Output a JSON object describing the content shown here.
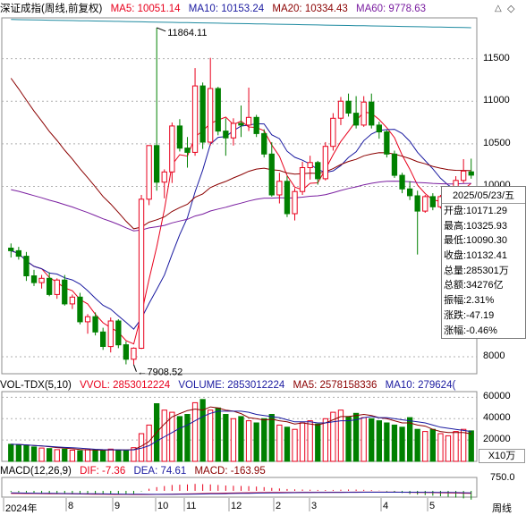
{
  "header": {
    "title": "深证成指(周线,前复权)",
    "ma5": "MA5: 10051.14",
    "ma10": "MA10: 10153.24",
    "ma20": "MA20: 10334.43",
    "ma60": "MA60: 9778.63",
    "colors": {
      "ma5": "#e8001c",
      "ma10": "#1a1aa0",
      "ma20": "#8b0000",
      "ma60": "#7a1ea0",
      "up": "#e8001c",
      "down": "#008000"
    }
  },
  "volume_header": {
    "title": "VOL-TDX(5,10)",
    "vvol": "VVOL: 2853012224",
    "volume": "VOLUME: 2853012224",
    "ma5": "MA5: 2578158336",
    "ma10": "MA10: 279624("
  },
  "macd_header": {
    "title": "MACD(12,26,9)",
    "dif": "DIF: -7.36",
    "dea": "DEA: 74.61",
    "macd": "MACD: -163.95"
  },
  "annotations": {
    "high": "11864.11",
    "low": "7908.52"
  },
  "price_axis": [
    "11500",
    "11000",
    "10500",
    "10000",
    "8000"
  ],
  "volume_axis": [
    "60000",
    "40000",
    "20000"
  ],
  "volume_unit": "X10万",
  "macd_axis": [
    "750.0"
  ],
  "corner_label": "周线",
  "x_labels": [
    "2024年",
    "8",
    "9",
    "10",
    "11",
    "12",
    "2",
    "3",
    "4",
    "5"
  ],
  "info_panel": {
    "date": "2025/05/23/五",
    "rows": [
      "开盘:10171.29",
      "最高:10325.93",
      "最低:10090.30",
      "收盘:10132.41",
      "总量:285301万",
      "总额:34276亿",
      "振幅:2.31%",
      "涨跌:-47.19",
      "涨幅:-0.46%"
    ]
  },
  "chart_data": {
    "type": "candlestick",
    "weeks": [
      {
        "o": 9275,
        "h": 9330,
        "l": 9165,
        "c": 9245
      },
      {
        "o": 9245,
        "h": 9290,
        "l": 9140,
        "c": 9180
      },
      {
        "o": 9180,
        "h": 9230,
        "l": 8890,
        "c": 8950
      },
      {
        "o": 8950,
        "h": 9020,
        "l": 8830,
        "c": 8870
      },
      {
        "o": 8870,
        "h": 8960,
        "l": 8800,
        "c": 8920
      },
      {
        "o": 8920,
        "h": 8990,
        "l": 8710,
        "c": 8730
      },
      {
        "o": 8730,
        "h": 8920,
        "l": 8680,
        "c": 8900
      },
      {
        "o": 8900,
        "h": 8960,
        "l": 8600,
        "c": 8620
      },
      {
        "o": 8620,
        "h": 8730,
        "l": 8560,
        "c": 8700
      },
      {
        "o": 8700,
        "h": 8750,
        "l": 8380,
        "c": 8410
      },
      {
        "o": 8410,
        "h": 8500,
        "l": 8270,
        "c": 8470
      },
      {
        "o": 8470,
        "h": 8520,
        "l": 8250,
        "c": 8290
      },
      {
        "o": 8290,
        "h": 8340,
        "l": 8080,
        "c": 8120
      },
      {
        "o": 8120,
        "h": 8460,
        "l": 8050,
        "c": 8420
      },
      {
        "o": 8420,
        "h": 8440,
        "l": 8100,
        "c": 8140
      },
      {
        "o": 8140,
        "h": 8180,
        "l": 7910,
        "c": 7970
      },
      {
        "o": 7970,
        "h": 8110,
        "l": 7908.52,
        "c": 8100
      },
      {
        "o": 8100,
        "h": 9900,
        "l": 8090,
        "c": 9850
      },
      {
        "o": 9850,
        "h": 10480,
        "l": 9780,
        "c": 10480
      },
      {
        "o": 10480,
        "h": 11864.11,
        "l": 9950,
        "c": 10050
      },
      {
        "o": 10050,
        "h": 10200,
        "l": 9860,
        "c": 10170
      },
      {
        "o": 10170,
        "h": 10750,
        "l": 10040,
        "c": 10710
      },
      {
        "o": 10710,
        "h": 10790,
        "l": 10410,
        "c": 10450
      },
      {
        "o": 10450,
        "h": 10580,
        "l": 10220,
        "c": 10400
      },
      {
        "o": 10400,
        "h": 11390,
        "l": 10360,
        "c": 11180
      },
      {
        "o": 11180,
        "h": 11220,
        "l": 10440,
        "c": 10520
      },
      {
        "o": 10520,
        "h": 11510,
        "l": 10480,
        "c": 11150
      },
      {
        "o": 11150,
        "h": 11170,
        "l": 10600,
        "c": 10650
      },
      {
        "o": 10650,
        "h": 10800,
        "l": 10360,
        "c": 10570
      },
      {
        "o": 10570,
        "h": 10800,
        "l": 10480,
        "c": 10740
      },
      {
        "o": 10740,
        "h": 10950,
        "l": 10580,
        "c": 10720
      },
      {
        "o": 10720,
        "h": 11160,
        "l": 10650,
        "c": 10810
      },
      {
        "o": 10810,
        "h": 10840,
        "l": 10580,
        "c": 10620
      },
      {
        "o": 10620,
        "h": 10670,
        "l": 10340,
        "c": 10380
      },
      {
        "o": 10380,
        "h": 10520,
        "l": 9880,
        "c": 9900
      },
      {
        "o": 9900,
        "h": 10160,
        "l": 9800,
        "c": 10060
      },
      {
        "o": 10060,
        "h": 10120,
        "l": 9640,
        "c": 9680
      },
      {
        "o": 9680,
        "h": 9980,
        "l": 9600,
        "c": 9940
      },
      {
        "o": 9940,
        "h": 10290,
        "l": 9900,
        "c": 10220
      },
      {
        "o": 10220,
        "h": 10360,
        "l": 10080,
        "c": 10280
      },
      {
        "o": 10280,
        "h": 10300,
        "l": 10020,
        "c": 10090
      },
      {
        "o": 10090,
        "h": 10520,
        "l": 10070,
        "c": 10470
      },
      {
        "o": 10470,
        "h": 10860,
        "l": 10420,
        "c": 10800
      },
      {
        "o": 10800,
        "h": 11050,
        "l": 10720,
        "c": 11000
      },
      {
        "o": 11000,
        "h": 11090,
        "l": 10820,
        "c": 10860
      },
      {
        "o": 10860,
        "h": 11060,
        "l": 10680,
        "c": 10720
      },
      {
        "o": 10720,
        "h": 11060,
        "l": 10700,
        "c": 10990
      },
      {
        "o": 10990,
        "h": 11090,
        "l": 10680,
        "c": 10720
      },
      {
        "o": 10720,
        "h": 10760,
        "l": 10560,
        "c": 10640
      },
      {
        "o": 10640,
        "h": 10660,
        "l": 10340,
        "c": 10380
      },
      {
        "o": 10380,
        "h": 10420,
        "l": 10100,
        "c": 10130
      },
      {
        "o": 10130,
        "h": 10160,
        "l": 9920,
        "c": 9970
      },
      {
        "o": 9970,
        "h": 10060,
        "l": 9840,
        "c": 9890
      },
      {
        "o": 9890,
        "h": 9950,
        "l": 9200,
        "c": 9710
      },
      {
        "o": 9710,
        "h": 9900,
        "l": 9690,
        "c": 9880
      },
      {
        "o": 9880,
        "h": 9920,
        "l": 9720,
        "c": 9760
      },
      {
        "o": 9760,
        "h": 9900,
        "l": 9740,
        "c": 9880
      },
      {
        "o": 9880,
        "h": 9950,
        "l": 9860,
        "c": 9920
      },
      {
        "o": 9920,
        "h": 10120,
        "l": 9900,
        "c": 10070
      },
      {
        "o": 10070,
        "h": 10320,
        "l": 10040,
        "c": 10180
      },
      {
        "o": 10171.29,
        "h": 10325.93,
        "l": 10090.3,
        "c": 10132.41
      }
    ],
    "volume": [
      16000,
      15500,
      14800,
      13500,
      12500,
      12000,
      11000,
      11500,
      10500,
      10000,
      11000,
      10800,
      10200,
      11500,
      10500,
      10000,
      12800,
      26000,
      34000,
      54000,
      48000,
      46000,
      42000,
      44000,
      55000,
      58000,
      48000,
      50000,
      44000,
      40000,
      42000,
      38000,
      36000,
      40000,
      44000,
      34000,
      32000,
      30000,
      36000,
      38000,
      35000,
      40000,
      46000,
      48000,
      42000,
      45000,
      41000,
      40000,
      38000,
      36000,
      34000,
      32000,
      41000,
      30000,
      28000,
      30000,
      26000,
      24000,
      28000,
      30000,
      28530
    ],
    "volume_ma5": [
      16000,
      15800,
      15400,
      14900,
      14500,
      13700,
      12900,
      12500,
      11800,
      11100,
      10800,
      10700,
      10500,
      10600,
      10800,
      10600,
      11000,
      14200,
      18600,
      27300,
      35000,
      41600,
      44700,
      47600,
      49000,
      48000,
      51000,
      50000,
      48000,
      47000,
      44700,
      41000,
      40000,
      38800,
      39500,
      38000,
      37000,
      35000,
      36000,
      35000,
      34000,
      36000,
      39000,
      42000,
      42000,
      43000,
      44000,
      43000,
      41000,
      40000,
      38000,
      36000,
      36000,
      34000,
      33000,
      30000,
      28000,
      27000,
      27000,
      27000,
      25780
    ],
    "volume_ma10": [
      16000,
      15800,
      15400,
      14900,
      14500,
      14000,
      13500,
      13100,
      12700,
      12300,
      11800,
      11300,
      11000,
      10900,
      10800,
      10700,
      10800,
      12300,
      14700,
      19000,
      23000,
      27000,
      31000,
      34000,
      38000,
      42000,
      45000,
      47000,
      47000,
      47000,
      47000,
      46000,
      44000,
      43000,
      42000,
      41000,
      39000,
      37000,
      37000,
      37000,
      36000,
      36000,
      37000,
      38000,
      38000,
      39000,
      41000,
      42000,
      41000,
      41000,
      40000,
      39000,
      38000,
      37000,
      36000,
      34000,
      32000,
      31000,
      30000,
      29000,
      27960
    ],
    "macd_hist": [
      -20,
      -25,
      -30,
      -35,
      -40,
      -45,
      -50,
      -55,
      -60,
      -62,
      -64,
      -66,
      -68,
      -66,
      -64,
      -62,
      -55,
      -10,
      40,
      70,
      90,
      110,
      115,
      120,
      130,
      125,
      120,
      110,
      100,
      95,
      92,
      88,
      80,
      70,
      55,
      45,
      35,
      28,
      25,
      22,
      18,
      16,
      18,
      22,
      25,
      24,
      20,
      15,
      5,
      -10,
      -25,
      -40,
      -60,
      -70,
      -80,
      -90,
      -100,
      -110,
      -125,
      -140,
      -163.95
    ],
    "price_ylim": [
      7800,
      12000
    ],
    "x_ticks": [
      "2024年",
      "8",
      "9",
      "10",
      "11",
      "12",
      "2",
      "3",
      "4",
      "5"
    ]
  }
}
